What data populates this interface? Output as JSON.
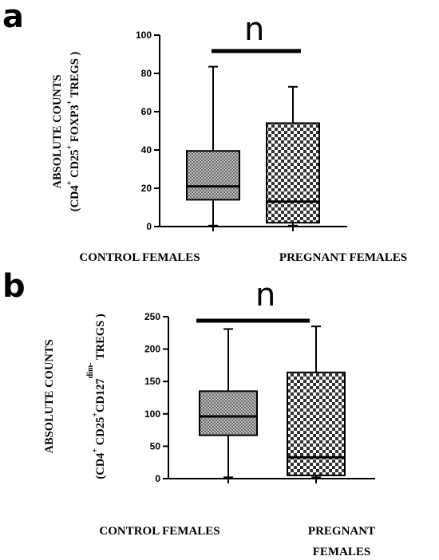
{
  "chart_data": [
    {
      "type": "box",
      "panel_label": "a",
      "significance": "n",
      "ylabel_line1": "ABSOLUTE COUNTS",
      "ylabel_line2_parts": [
        "(CD4",
        "+",
        " CD25",
        "+",
        " FOXP3",
        "+",
        " TREGS )"
      ],
      "categories": [
        "CONTROL FEMALES",
        "PREGNANT FEMALES"
      ],
      "ylim": [
        0,
        100
      ],
      "yticks": [
        0,
        20,
        40,
        60,
        80,
        100
      ],
      "boxes": [
        {
          "category": "CONTROL FEMALES",
          "min": 0.5,
          "q1": 14,
          "median": 21,
          "q3": 39.5,
          "max": 83.5,
          "fill": "grey-pattern"
        },
        {
          "category": "PREGNANT FEMALES",
          "min": 0.5,
          "q1": 2,
          "median": 13,
          "q3": 54,
          "max": 73,
          "fill": "checker-pattern"
        }
      ],
      "grid": false,
      "legend": "none"
    },
    {
      "type": "box",
      "panel_label": "b",
      "significance": "n",
      "ylabel_line1": "ABSOLUTE COUNTS",
      "ylabel_line2_parts": [
        "(CD4",
        "+",
        " CD25",
        "+",
        "CD127",
        "dim-",
        " TREGS )"
      ],
      "categories": [
        "CONTROL FEMALES",
        "PREGNANT FEMALES"
      ],
      "category_lines_b": [
        [
          "CONTROL FEMALES"
        ],
        [
          "PREGNANT",
          "FEMALES"
        ]
      ],
      "ylim": [
        0,
        250
      ],
      "yticks": [
        0,
        50,
        100,
        150,
        200,
        250
      ],
      "boxes": [
        {
          "category": "CONTROL FEMALES",
          "min": 2,
          "q1": 67,
          "median": 96,
          "q3": 135,
          "max": 231,
          "fill": "grey-pattern"
        },
        {
          "category": "PREGNANT FEMALES",
          "min": 2,
          "q1": 5,
          "median": 33,
          "q3": 164,
          "max": 235,
          "fill": "checker-pattern"
        }
      ],
      "grid": false,
      "legend": "none"
    }
  ]
}
